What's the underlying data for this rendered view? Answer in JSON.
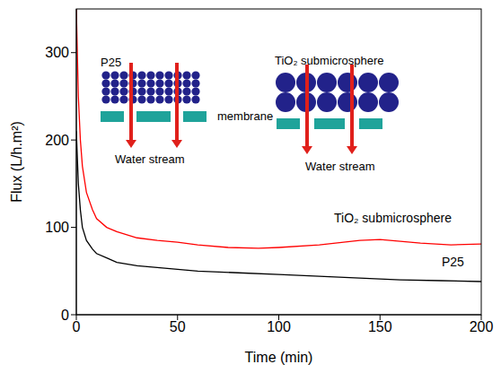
{
  "chart_data": {
    "type": "line",
    "x_label": "Time (min)",
    "y_label": "Flux (L/h.m²)",
    "xlim": [
      0,
      200
    ],
    "ylim": [
      0,
      350
    ],
    "xticks": [
      0,
      50,
      100,
      150,
      200
    ],
    "yticks": [
      0,
      100,
      200,
      300
    ],
    "series": [
      {
        "name": "TiO₂ submicrosphere",
        "color": "#ff0000",
        "x": [
          0,
          1,
          2,
          3,
          5,
          8,
          10,
          15,
          20,
          30,
          40,
          50,
          60,
          75,
          90,
          100,
          120,
          140,
          150,
          170,
          185,
          200
        ],
        "values": [
          350,
          250,
          200,
          170,
          140,
          120,
          110,
          100,
          95,
          88,
          85,
          83,
          80,
          77,
          76,
          77,
          80,
          85,
          86,
          82,
          80,
          81
        ]
      },
      {
        "name": "P25",
        "color": "#000000",
        "x": [
          0,
          1,
          2,
          3,
          5,
          8,
          10,
          15,
          20,
          30,
          40,
          50,
          60,
          80,
          100,
          120,
          140,
          160,
          180,
          200
        ],
        "values": [
          210,
          150,
          120,
          100,
          85,
          75,
          70,
          65,
          60,
          56,
          54,
          52,
          50,
          48,
          46,
          44,
          42,
          40,
          39,
          38
        ]
      }
    ],
    "annotations": [
      "P25",
      "TiO₂ submicrosphere",
      "membrane",
      "Water stream",
      "Water stream"
    ]
  }
}
